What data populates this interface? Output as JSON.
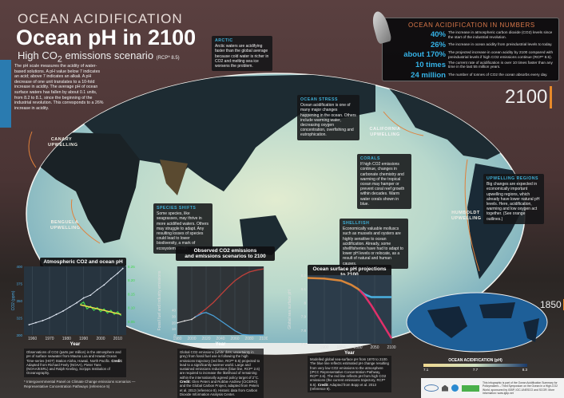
{
  "header": {
    "kicker": "OCEAN ACIDIFICATION",
    "title": "Ocean pH in 2100",
    "subtitle_pre": "High CO",
    "subtitle_sub": "2",
    "subtitle_post": " emissions scenario",
    "subtitle_note": "(RCP* 8.5)"
  },
  "intro": "The pH scale measures the acidity of water-based solutions. A pH value below 7 indicates an acid; above 7 indicates an alkali. A pH decrease of one unit translates to a 10-fold increase in acidity. The average pH of ocean surface waters has fallen by about 0.1 units, from 8.2 to 8.1, since the beginning of the industrial revolution. This corresponds to a 26% increase in acidity.",
  "numbers": {
    "title": "OCEAN ACIDIFICATION IN NUMBERS",
    "items": [
      {
        "value": "40%",
        "text": "The increase in atmospheric carbon dioxide (CO2) levels since the start of the industrial revolution."
      },
      {
        "value": "26%",
        "text": "The increase in ocean acidity from preindustrial levels to today."
      },
      {
        "value": "about 170%",
        "text": "The projected increase in ocean acidity by 2100 compared with preindustrial levels if high CO2 emissions continue (RCP* 8.5)."
      },
      {
        "value": "10 times",
        "text": "The current rate of acidification is over 10 times faster than any time in the last 55 million years."
      },
      {
        "value": "24 million",
        "text": "The number of tonnes of CO2 the ocean absorbs every day."
      }
    ]
  },
  "map": {
    "year_label": "2100",
    "colors": {
      "ocean_high": "#d8e6c8",
      "ocean_mid": "#8fc4c8",
      "ocean_low": "#2a5f88",
      "land": "#1c2a30",
      "upwelling": "#e0803a"
    },
    "boxes": {
      "arctic": {
        "title": "ARCTIC",
        "text": "Arctic waters are acidifying faster than the global average because cold water is richer in CO2 and melting sea ice worsens the problem."
      },
      "ocean_stress": {
        "title": "OCEAN STRESS",
        "text": "Ocean acidification is one of many major changes happening in the ocean. Others include warming water, decreasing oxygen concentration, overfishing and eutrophication."
      },
      "corals": {
        "title": "CORALS",
        "text": "If high CO2 emissions continue, changes in carbonate chemistry and warming of the tropical ocean may hamper or prevent coral reef growth within decades. Warm water corals shown in blue."
      },
      "shellfish": {
        "title": "SHELLFISH",
        "text": "Economically valuable molluscs such as mussels and oysters are highly sensitive to ocean acidification. Already, some shellfisheries have had to adapt to lower pH levels or relocate, as a result of natural and human causes."
      },
      "upwelling": {
        "title": "UPWELLING REGIONS",
        "text": "Big changes are expected in economically important upwelling regions, which already have lower natural pH levels. Here, acidification, warming and low oxygen act together. (See orange outlines.)"
      },
      "species": {
        "title": "SPECIES SHIFTS",
        "text": "Some species, like seagrasses, may thrive in more acidified waters. Others may struggle to adapt. Any resulting losses of species could lead to lower biodiversity, a mark of ecosystem health."
      }
    },
    "labels": {
      "canary": "CANARY UPWELLING",
      "benguela": "BENGUELA UPWELLING",
      "california": "CALIFORNIA UPWELLING",
      "humboldt": "HUMBOLDT UPWELLING"
    }
  },
  "inset": {
    "year_label": "1850",
    "legend_title": "OCEAN ACIDIFICATION (pH)",
    "legend_ticks": [
      "7.1",
      "7.7",
      "8.3"
    ],
    "legend_colors": [
      "#f0d890",
      "#d0e0c0",
      "#1a3a6a"
    ]
  },
  "footnote": "* Intergovernmental Panel on Climate Change emissions scenarios — Representative Concentration Pathways (reference 5)",
  "footer_text": "This infographic is part of the Ocean Acidification Summary for Policymakers – Third Symposium on the Ocean in a High-CO2 World, sponsored by IGBP, IOC-UNESCO and SCOR. More information: www.igbp.net",
  "chart_data": [
    {
      "type": "line",
      "title": "Atmospheric CO2 and ocean pH",
      "xlabel": "Year",
      "ylabel": "CO2 (ppm)",
      "y2label": "pH",
      "xlim": [
        1955,
        2015
      ],
      "ylim": [
        300,
        400
      ],
      "y2lim": [
        8.0,
        8.25
      ],
      "xticks": [
        1960,
        1970,
        1980,
        1990,
        2000,
        2010
      ],
      "yticks": [
        300,
        325,
        350,
        375,
        400
      ],
      "y2ticks": [
        8.05,
        8.1,
        8.15,
        8.2,
        8.25
      ],
      "series": [
        {
          "axis": "left",
          "color": "#dfe6f2",
          "x": [
            1958,
            1962,
            1966,
            1970,
            1974,
            1978,
            1982,
            1986,
            1990,
            1994,
            1998,
            2002,
            2006,
            2010,
            2013
          ],
          "y": [
            315,
            318,
            321,
            325,
            330,
            335,
            341,
            347,
            354,
            358,
            366,
            373,
            382,
            390,
            397
          ]
        },
        {
          "axis": "right",
          "color": "#3fd84a",
          "x": [
            1988,
            1990,
            1992,
            1994,
            1996,
            1998,
            2000,
            2002,
            2004,
            2006,
            2008,
            2010,
            2012
          ],
          "y": [
            8.112,
            8.12,
            8.095,
            8.105,
            8.09,
            8.1,
            8.085,
            8.095,
            8.08,
            8.09,
            8.075,
            8.085,
            8.07
          ]
        },
        {
          "axis": "right",
          "color": "#f0e24a",
          "x": [
            1988,
            2012
          ],
          "y": [
            8.11,
            8.075
          ]
        }
      ],
      "caption": "Observations of CO2 (parts per million) in the atmosphere and pH of surface seawater from Mauna Loa and Hawaii Ocean Time-series (HOT) Station Aloha, Hawaii, North Pacific.",
      "credit_label": "Credit:",
      "credit": "Adapted from Richard Feely (NOAA), Pieter Tans (NOAA/ESRL) and Ralph Keeling, Scripps Institution of Oceanography."
    },
    {
      "type": "line",
      "title_line1": "Observed CO2 emissions",
      "title_line2": "and emissions scenarios to 2100",
      "xlabel": "Year",
      "ylabel": "Fossil fuel and industry emissions",
      "xlim": [
        1980,
        2100
      ],
      "ylim": [
        0,
        110
      ],
      "xticks": [
        1980,
        2000,
        2020,
        2040,
        2060,
        2080,
        2100
      ],
      "yticks": [
        0,
        10,
        20,
        30,
        40
      ],
      "series": [
        {
          "name": "Observed",
          "color": "#e8e8e8",
          "x": [
            1980,
            1990,
            2000,
            2005,
            2010,
            2013
          ],
          "y": [
            19.5,
            22.5,
            25,
            29,
            33,
            36
          ]
        },
        {
          "color": "#c0403a",
          "x": [
            2005,
            2020,
            2030,
            2040,
            2050,
            2060,
            2070,
            2080,
            2090,
            2100
          ],
          "y": [
            29,
            42,
            52,
            64,
            76,
            87,
            95,
            101,
            104,
            106
          ]
        },
        {
          "color": "#4aa0d8",
          "x": [
            2005,
            2015,
            2020,
            2030,
            2040,
            2050,
            2060,
            2070,
            2080,
            2100
          ],
          "y": [
            29,
            35,
            36,
            31,
            23,
            15,
            7,
            1,
            -2,
            -4
          ]
        }
      ],
      "caption": "Global CO2 emissions (white dots; uncertainty in grey) from fossil fuel use is following the high emissions trajectory (red line, RCP* 8.5) projected to lead to a significantly warmer world. Large and sustained emissions reductions (blue line, RCP* 2.6) are required to increase the likelihood of remaining within the internationally agreed policy target of 2°C.",
      "credit_label": "Credit:",
      "credit": "Glen Peters and Robbie Andrew (CICERO) and the Global Carbon Project, adapted from Peters et al. 2013 (reference 8). Historic data from Carbon Dioxide Information Analysis Center."
    },
    {
      "type": "line",
      "title": "Ocean surface pH projections to 2100",
      "xlabel": "Year",
      "ylabel": "Global sea surface pH",
      "xlim": [
        1850,
        2100
      ],
      "ylim": [
        7.7,
        8.2
      ],
      "xticks": [
        1900,
        1950,
        2000,
        2050,
        2100
      ],
      "yticks": [
        7.7,
        7.8,
        7.9,
        8.0,
        8.1,
        8.2
      ],
      "series": [
        {
          "color": "#d8863a",
          "x": [
            1850,
            1900,
            1950,
            1980,
            2000,
            2010
          ],
          "y": [
            8.18,
            8.175,
            8.16,
            8.13,
            8.1,
            8.08
          ]
        },
        {
          "color": "#4ab0e0",
          "x": [
            2005,
            2020,
            2030,
            2040,
            2050,
            2070,
            2100
          ],
          "y": [
            8.09,
            8.06,
            8.05,
            8.04,
            8.04,
            8.04,
            8.04
          ]
        },
        {
          "color": "#e0306a",
          "x": [
            2005,
            2020,
            2040,
            2060,
            2080,
            2100
          ],
          "y": [
            8.09,
            8.05,
            7.98,
            7.9,
            7.82,
            7.74
          ]
        }
      ],
      "caption": "Modelled global sea-surface pH from 1870 to 2100. The blue line reflects estimated pH change resulting from very low CO2 emissions to the atmosphere (IPCC Representative Concentration Pathway, RCP* 2.6). The red line reflects pH from high CO2 emissions (the current emissions trajectory, RCP* 8.5).",
      "credit_label": "Credit:",
      "credit": "Adapted from Bopp et al. 2013 (reference 9)."
    }
  ]
}
